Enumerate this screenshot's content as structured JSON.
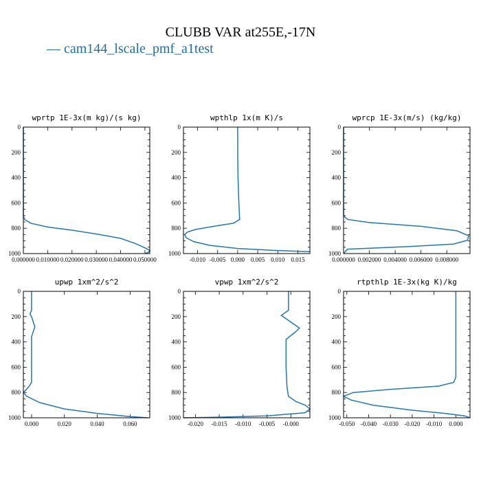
{
  "title": "CLUBB VAR at255E,-17N",
  "legend_label": "— cam144_lscale_pmf_a1test",
  "colors": {
    "series": "#1f77b4",
    "legend": "#1f6f9f"
  },
  "chart_data": [
    {
      "type": "line",
      "title": "wprtp  1E-3x(m kg)/(s kg)",
      "xlim": [
        0.0,
        0.052
      ],
      "ylim": [
        1000,
        0
      ],
      "xticks": [
        0.0,
        0.01,
        0.02,
        0.03,
        0.04,
        0.05
      ],
      "xtick_labels": [
        "0.000000",
        "0.010000",
        "0.020000",
        "0.030000",
        "0.040000",
        "0.050000"
      ],
      "yticks": [
        0,
        200,
        400,
        600,
        800,
        1000
      ],
      "series": [
        {
          "x": [
            0.0,
            0.0,
            0.0,
            0.0,
            0.0005,
            0.003,
            0.01,
            0.02,
            0.03,
            0.04,
            0.046,
            0.05,
            0.052,
            0.0515,
            0.05
          ],
          "y": [
            0,
            200,
            400,
            700,
            730,
            760,
            790,
            815,
            845,
            880,
            920,
            955,
            975,
            990,
            1000
          ]
        }
      ]
    },
    {
      "type": "line",
      "title": "wpthlp  1x(m K)/s",
      "xlim": [
        -0.0135,
        0.018
      ],
      "ylim": [
        1000,
        0
      ],
      "xticks": [
        -0.01,
        -0.005,
        0.0,
        0.005,
        0.01,
        0.015
      ],
      "xtick_labels": [
        "-0.010",
        "-0.005",
        "0.000",
        "0.005",
        "0.010",
        "0.015"
      ],
      "yticks": [
        0,
        200,
        400,
        600,
        800,
        1000
      ],
      "series": [
        {
          "x": [
            0.0,
            0.0,
            0.0001,
            0.0003,
            0.0005,
            -0.001,
            -0.006,
            -0.0105,
            -0.0125,
            -0.0132,
            -0.0128,
            -0.011,
            -0.007,
            0.0,
            0.009,
            0.018
          ],
          "y": [
            0,
            200,
            400,
            600,
            730,
            760,
            785,
            810,
            830,
            850,
            875,
            905,
            935,
            960,
            975,
            985
          ]
        }
      ]
    },
    {
      "type": "line",
      "title": "wprcp  1E-3x(m/s) (kg/kg)",
      "xlim": [
        0.0,
        0.0098
      ],
      "ylim": [
        1000,
        0
      ],
      "xticks": [
        0.0,
        0.002,
        0.004,
        0.006,
        0.008
      ],
      "xtick_labels": [
        "0.000000",
        "0.002000",
        "0.004000",
        "0.006000",
        "0.008000"
      ],
      "yticks": [
        0,
        200,
        400,
        600,
        800,
        1000
      ],
      "series": [
        {
          "x": [
            0.0,
            0.0,
            0.0,
            0.0003,
            0.002,
            0.006,
            0.0088,
            0.0097,
            0.0096,
            0.0085,
            0.005,
            0.002,
            0.0003,
            0.0
          ],
          "y": [
            0,
            300,
            700,
            730,
            755,
            785,
            820,
            860,
            895,
            925,
            945,
            958,
            965,
            1000
          ]
        }
      ]
    },
    {
      "type": "line",
      "title": "upwp  1xm^2/s^2",
      "xlim": [
        -0.005,
        0.072
      ],
      "ylim": [
        1000,
        0
      ],
      "xticks": [
        0.0,
        0.02,
        0.04,
        0.06
      ],
      "xtick_labels": [
        "0.000",
        "0.020",
        "0.040",
        "0.060"
      ],
      "yticks": [
        0,
        200,
        400,
        600,
        800,
        1000
      ],
      "series": [
        {
          "x": [
            0.0,
            0.0,
            -0.001,
            0.0,
            0.002,
            0.001,
            0.0,
            0.0,
            0.0,
            -0.002,
            -0.005,
            -0.003,
            0.005,
            0.02,
            0.04,
            0.06,
            0.071
          ],
          "y": [
            0,
            150,
            180,
            200,
            280,
            320,
            360,
            600,
            720,
            760,
            800,
            830,
            880,
            930,
            965,
            990,
            1000
          ]
        }
      ]
    },
    {
      "type": "line",
      "title": "vpwp  1xm^2/s^2",
      "xlim": [
        -0.0225,
        0.004
      ],
      "ylim": [
        1000,
        0
      ],
      "xticks": [
        -0.02,
        -0.015,
        -0.01,
        -0.005,
        0.0
      ],
      "xtick_labels": [
        "-0.020",
        "-0.015",
        "-0.010",
        "-0.005",
        "-0.000"
      ],
      "yticks": [
        0,
        200,
        400,
        600,
        800,
        1000
      ],
      "series": [
        {
          "x": [
            -0.0005,
            -0.0005,
            -0.002,
            -0.0005,
            0.0018,
            0.001,
            -0.001,
            -0.001,
            -0.0008,
            -0.0005,
            0.001,
            0.003,
            0.004,
            0.003,
            -0.005,
            -0.015,
            -0.0225
          ],
          "y": [
            0,
            150,
            190,
            230,
            290,
            320,
            380,
            600,
            760,
            830,
            870,
            900,
            930,
            960,
            985,
            995,
            1000
          ]
        }
      ]
    },
    {
      "type": "line",
      "title": "rtpthlp  1E-3x(kg K)/kg",
      "xlim": [
        -0.0515,
        0.0065
      ],
      "ylim": [
        1000,
        0
      ],
      "xticks": [
        -0.05,
        -0.04,
        -0.03,
        -0.02,
        -0.01,
        0.0
      ],
      "xtick_labels": [
        "-0.050",
        "-0.040",
        "-0.030",
        "-0.020",
        "-0.010",
        "0.000"
      ],
      "yticks": [
        0,
        200,
        400,
        600,
        800,
        1000
      ],
      "series": [
        {
          "x": [
            0.0,
            0.0,
            0.0,
            -0.001,
            -0.008,
            -0.03,
            -0.047,
            -0.0515,
            -0.048,
            -0.038,
            -0.02,
            -0.005,
            0.004,
            0.0065
          ],
          "y": [
            0,
            300,
            680,
            720,
            750,
            775,
            800,
            830,
            860,
            900,
            940,
            965,
            985,
            1000
          ]
        }
      ]
    }
  ]
}
